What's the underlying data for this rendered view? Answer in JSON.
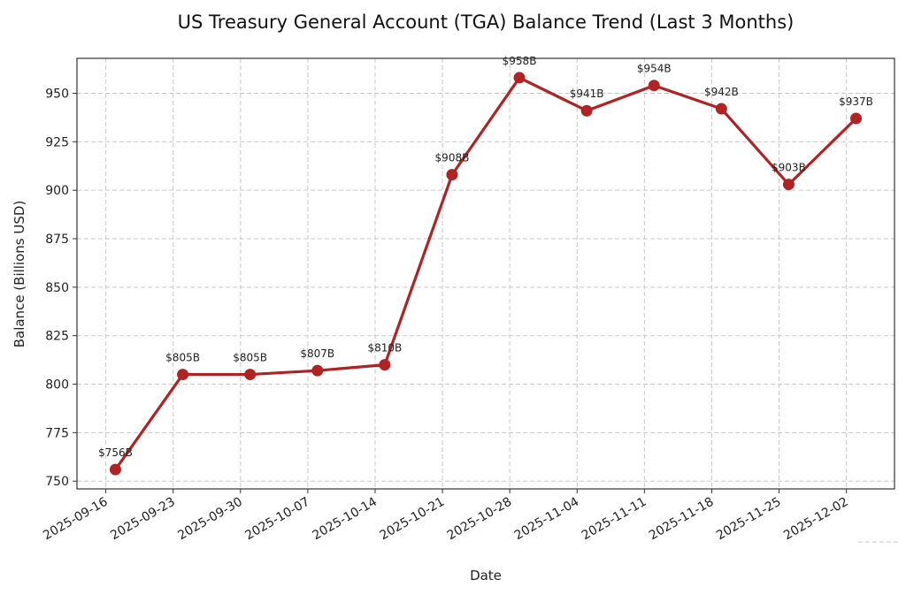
{
  "chart_data": {
    "type": "line",
    "title": "US Treasury General Account (TGA) Balance Trend (Last 3 Months)",
    "xlabel": "Date",
    "ylabel": "Balance (Billions USD)",
    "x": [
      "2025-09-17",
      "2025-09-24",
      "2025-10-01",
      "2025-10-08",
      "2025-10-15",
      "2025-10-22",
      "2025-10-29",
      "2025-11-05",
      "2025-11-12",
      "2025-11-19",
      "2025-11-26",
      "2025-12-03"
    ],
    "series": [
      {
        "values": [
          756,
          805,
          805,
          807,
          810,
          908,
          958,
          941,
          954,
          942,
          903,
          937
        ],
        "data_labels": [
          "$756B",
          "$805B",
          "$805B",
          "$807B",
          "$810B",
          "$908B",
          "$958B",
          "$941B",
          "$954B",
          "$942B",
          "$903B",
          "$937B"
        ],
        "color": "#b22222",
        "marker": "circle"
      }
    ],
    "x_ticks": [
      "2025-09-16",
      "2025-09-23",
      "2025-09-30",
      "2025-10-07",
      "2025-10-14",
      "2025-10-21",
      "2025-10-28",
      "2025-11-04",
      "2025-11-11",
      "2025-11-18",
      "2025-11-25",
      "2025-12-02"
    ],
    "y_ticks": [
      750,
      775,
      800,
      825,
      850,
      875,
      900,
      925,
      950
    ],
    "xlim": [
      "2025-09-13",
      "2025-12-07"
    ],
    "ylim": [
      746,
      968
    ],
    "grid": true,
    "legend": "none"
  }
}
